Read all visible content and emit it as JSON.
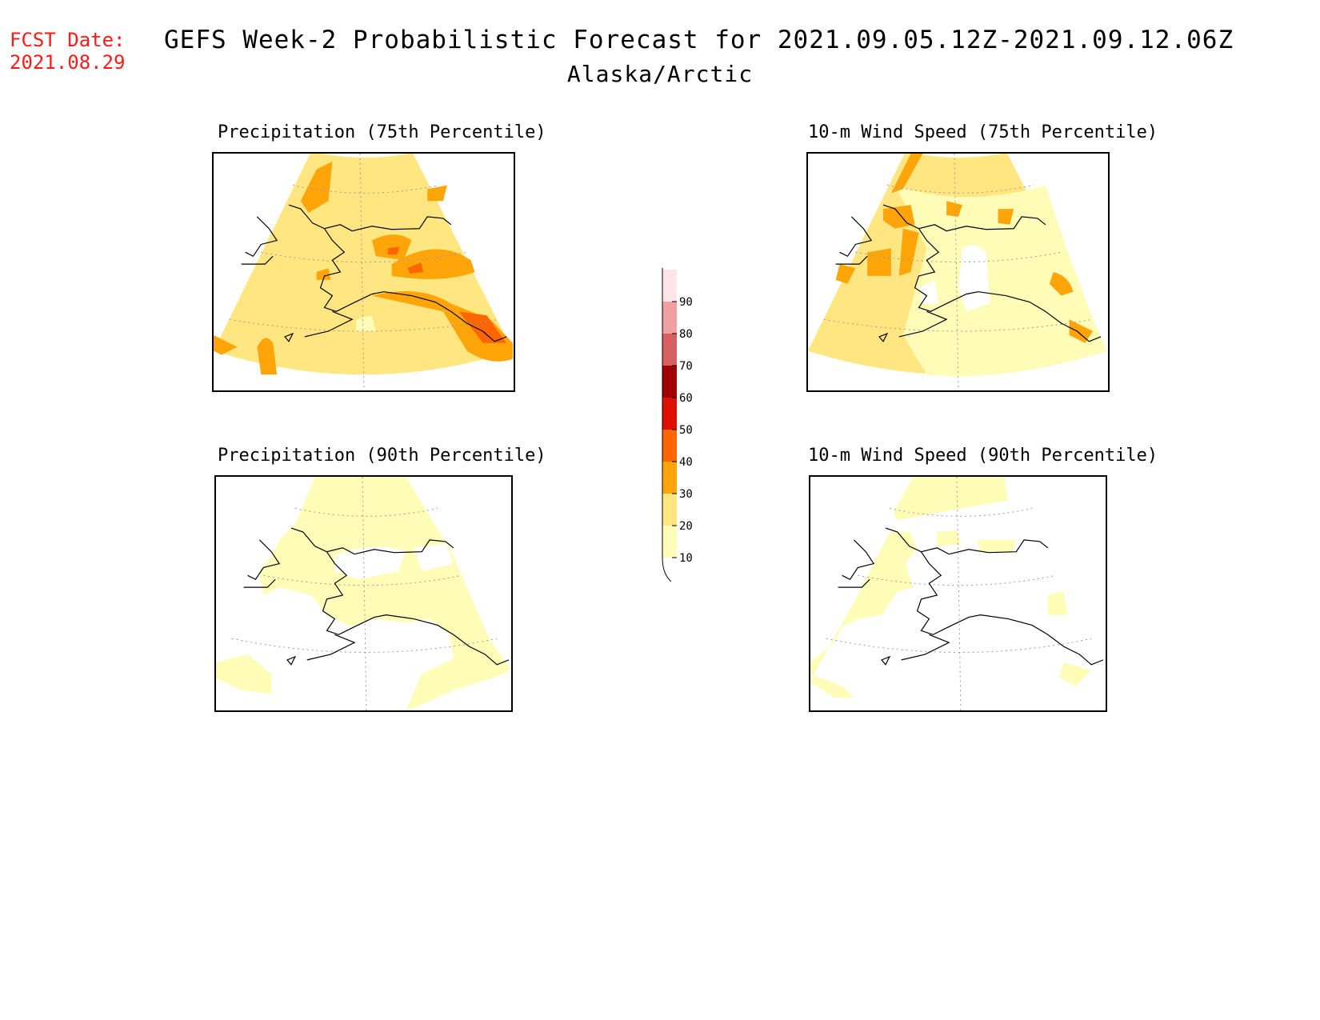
{
  "forecast_date": {
    "label": "FCST Date:",
    "value": "2021.08.29"
  },
  "title": {
    "line1": "GEFS Week-2 Probabilistic Forecast for 2021.09.05.12Z-2021.09.12.06Z",
    "line2": "Alaska/Arctic"
  },
  "panels": [
    {
      "id": "precip75",
      "title": "Precipitation (75th Percentile)"
    },
    {
      "id": "wind75",
      "title": "10-m Wind Speed (75th Percentile)"
    },
    {
      "id": "precip90",
      "title": "Precipitation (90th Percentile)"
    },
    {
      "id": "wind90",
      "title": "10-m Wind Speed (90th Percentile)"
    }
  ],
  "colorbar": {
    "levels": [
      "10",
      "20",
      "30",
      "40",
      "50",
      "60",
      "70",
      "80",
      "90"
    ],
    "colors": [
      "#fffcb8",
      "#ffe680",
      "#ffa50a",
      "#ff6600",
      "#e01000",
      "#a00000",
      "#d86060",
      "#f0a0a0",
      "#ffe4e8"
    ]
  }
}
